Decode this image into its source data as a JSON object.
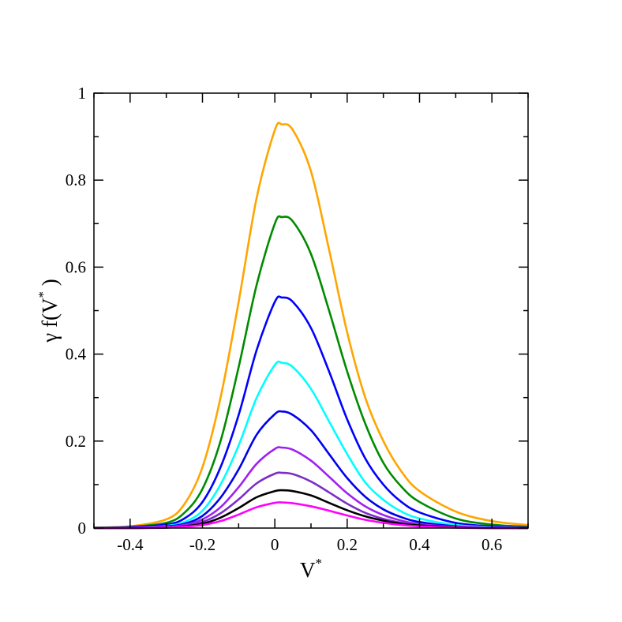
{
  "chart_data": {
    "type": "line",
    "title": "",
    "xlabel": "V",
    "xlabel_superscript": "*",
    "ylabel_greek": "γ",
    "ylabel_main": "f(V",
    "ylabel_close": ")",
    "ylabel_superscript": "*",
    "xlim": [
      -0.5,
      0.7
    ],
    "ylim": [
      0,
      1
    ],
    "xticks": [
      -0.4,
      -0.2,
      0,
      0.2,
      0.4,
      0.6
    ],
    "xtick_labels": [
      "-0.4",
      "-0.2",
      "0",
      "0.2",
      "0.4",
      "0.6"
    ],
    "yticks": [
      0,
      0.2,
      0.4,
      0.6,
      0.8,
      1
    ],
    "ytick_labels": [
      "0",
      "0.2",
      "0.4",
      "0.6",
      "0.8",
      "1"
    ],
    "grid": false,
    "legend": "none",
    "series": [
      {
        "color": "#ffa500",
        "values": [
          [
            -0.5,
            0.001
          ],
          [
            -0.4,
            0.004
          ],
          [
            -0.3,
            0.02
          ],
          [
            -0.25,
            0.055
          ],
          [
            -0.2,
            0.14
          ],
          [
            -0.15,
            0.3
          ],
          [
            -0.1,
            0.52
          ],
          [
            -0.05,
            0.76
          ],
          [
            0,
            0.915
          ],
          [
            0.02,
            0.928
          ],
          [
            0.05,
            0.915
          ],
          [
            0.1,
            0.82
          ],
          [
            0.15,
            0.64
          ],
          [
            0.2,
            0.45
          ],
          [
            0.25,
            0.3
          ],
          [
            0.3,
            0.2
          ],
          [
            0.35,
            0.13
          ],
          [
            0.4,
            0.085
          ],
          [
            0.5,
            0.038
          ],
          [
            0.6,
            0.016
          ],
          [
            0.7,
            0.007
          ]
        ]
      },
      {
        "color": "#008b00",
        "values": [
          [
            -0.5,
            0.001
          ],
          [
            -0.4,
            0.003
          ],
          [
            -0.3,
            0.012
          ],
          [
            -0.25,
            0.035
          ],
          [
            -0.2,
            0.09
          ],
          [
            -0.15,
            0.2
          ],
          [
            -0.1,
            0.37
          ],
          [
            -0.05,
            0.56
          ],
          [
            0,
            0.7
          ],
          [
            0.02,
            0.715
          ],
          [
            0.05,
            0.705
          ],
          [
            0.1,
            0.63
          ],
          [
            0.15,
            0.5
          ],
          [
            0.2,
            0.36
          ],
          [
            0.25,
            0.24
          ],
          [
            0.3,
            0.15
          ],
          [
            0.35,
            0.095
          ],
          [
            0.4,
            0.06
          ],
          [
            0.5,
            0.022
          ],
          [
            0.6,
            0.008
          ],
          [
            0.7,
            0.003
          ]
        ]
      },
      {
        "color": "#0000ff",
        "values": [
          [
            -0.5,
            0.0
          ],
          [
            -0.4,
            0.002
          ],
          [
            -0.3,
            0.008
          ],
          [
            -0.25,
            0.022
          ],
          [
            -0.2,
            0.06
          ],
          [
            -0.15,
            0.14
          ],
          [
            -0.1,
            0.26
          ],
          [
            -0.05,
            0.41
          ],
          [
            0,
            0.52
          ],
          [
            0.02,
            0.53
          ],
          [
            0.05,
            0.52
          ],
          [
            0.1,
            0.46
          ],
          [
            0.15,
            0.36
          ],
          [
            0.2,
            0.25
          ],
          [
            0.25,
            0.16
          ],
          [
            0.3,
            0.1
          ],
          [
            0.35,
            0.06
          ],
          [
            0.4,
            0.036
          ],
          [
            0.5,
            0.012
          ],
          [
            0.6,
            0.004
          ],
          [
            0.7,
            0.001
          ]
        ]
      },
      {
        "color": "#00ffff",
        "values": [
          [
            -0.5,
            0.0
          ],
          [
            -0.4,
            0.001
          ],
          [
            -0.3,
            0.005
          ],
          [
            -0.25,
            0.014
          ],
          [
            -0.2,
            0.04
          ],
          [
            -0.15,
            0.1
          ],
          [
            -0.1,
            0.19
          ],
          [
            -0.05,
            0.3
          ],
          [
            0,
            0.375
          ],
          [
            0.02,
            0.38
          ],
          [
            0.05,
            0.37
          ],
          [
            0.1,
            0.32
          ],
          [
            0.15,
            0.245
          ],
          [
            0.2,
            0.17
          ],
          [
            0.25,
            0.105
          ],
          [
            0.3,
            0.065
          ],
          [
            0.35,
            0.038
          ],
          [
            0.4,
            0.022
          ],
          [
            0.5,
            0.007
          ],
          [
            0.6,
            0.002
          ],
          [
            0.7,
            0.0
          ]
        ]
      },
      {
        "color": "#0000ee",
        "values": [
          [
            -0.5,
            0.0
          ],
          [
            -0.4,
            0.001
          ],
          [
            -0.3,
            0.004
          ],
          [
            -0.25,
            0.01
          ],
          [
            -0.2,
            0.028
          ],
          [
            -0.15,
            0.07
          ],
          [
            -0.1,
            0.135
          ],
          [
            -0.05,
            0.215
          ],
          [
            0,
            0.262
          ],
          [
            0.02,
            0.268
          ],
          [
            0.05,
            0.26
          ],
          [
            0.1,
            0.225
          ],
          [
            0.15,
            0.17
          ],
          [
            0.2,
            0.115
          ],
          [
            0.25,
            0.072
          ],
          [
            0.3,
            0.043
          ],
          [
            0.35,
            0.025
          ],
          [
            0.4,
            0.014
          ],
          [
            0.5,
            0.004
          ],
          [
            0.6,
            0.001
          ],
          [
            0.7,
            0.0
          ]
        ]
      },
      {
        "color": "#a020f0",
        "values": [
          [
            -0.5,
            0.0
          ],
          [
            -0.4,
            0.001
          ],
          [
            -0.3,
            0.003
          ],
          [
            -0.25,
            0.007
          ],
          [
            -0.2,
            0.02
          ],
          [
            -0.15,
            0.048
          ],
          [
            -0.1,
            0.094
          ],
          [
            -0.05,
            0.148
          ],
          [
            0,
            0.182
          ],
          [
            0.02,
            0.185
          ],
          [
            0.05,
            0.18
          ],
          [
            0.1,
            0.155
          ],
          [
            0.15,
            0.118
          ],
          [
            0.2,
            0.08
          ],
          [
            0.25,
            0.05
          ],
          [
            0.3,
            0.03
          ],
          [
            0.35,
            0.017
          ],
          [
            0.4,
            0.009
          ],
          [
            0.5,
            0.003
          ],
          [
            0.6,
            0.001
          ],
          [
            0.7,
            0.0
          ]
        ]
      },
      {
        "color": "#7b2ec6",
        "values": [
          [
            -0.5,
            0.0
          ],
          [
            -0.4,
            0.0
          ],
          [
            -0.3,
            0.002
          ],
          [
            -0.25,
            0.005
          ],
          [
            -0.2,
            0.014
          ],
          [
            -0.15,
            0.034
          ],
          [
            -0.1,
            0.066
          ],
          [
            -0.05,
            0.103
          ],
          [
            0,
            0.125
          ],
          [
            0.02,
            0.127
          ],
          [
            0.05,
            0.124
          ],
          [
            0.1,
            0.107
          ],
          [
            0.15,
            0.082
          ],
          [
            0.2,
            0.056
          ],
          [
            0.25,
            0.035
          ],
          [
            0.3,
            0.021
          ],
          [
            0.35,
            0.012
          ],
          [
            0.4,
            0.006
          ],
          [
            0.5,
            0.002
          ],
          [
            0.6,
            0.0
          ],
          [
            0.7,
            0.0
          ]
        ]
      },
      {
        "color": "#000000",
        "values": [
          [
            -0.5,
            0.0
          ],
          [
            -0.4,
            0.0
          ],
          [
            -0.3,
            0.001
          ],
          [
            -0.25,
            0.004
          ],
          [
            -0.2,
            0.01
          ],
          [
            -0.15,
            0.024
          ],
          [
            -0.1,
            0.046
          ],
          [
            -0.05,
            0.071
          ],
          [
            0,
            0.085
          ],
          [
            0.02,
            0.087
          ],
          [
            0.05,
            0.085
          ],
          [
            0.1,
            0.075
          ],
          [
            0.15,
            0.058
          ],
          [
            0.2,
            0.041
          ],
          [
            0.25,
            0.027
          ],
          [
            0.3,
            0.017
          ],
          [
            0.35,
            0.01
          ],
          [
            0.4,
            0.006
          ],
          [
            0.5,
            0.002
          ],
          [
            0.6,
            0.0
          ],
          [
            0.7,
            0.0
          ]
        ]
      },
      {
        "color": "#ff00ff",
        "values": [
          [
            -0.5,
            0.0
          ],
          [
            -0.4,
            0.0
          ],
          [
            -0.3,
            0.001
          ],
          [
            -0.25,
            0.003
          ],
          [
            -0.2,
            0.007
          ],
          [
            -0.15,
            0.016
          ],
          [
            -0.1,
            0.031
          ],
          [
            -0.05,
            0.048
          ],
          [
            0,
            0.058
          ],
          [
            0.02,
            0.059
          ],
          [
            0.05,
            0.057
          ],
          [
            0.1,
            0.05
          ],
          [
            0.15,
            0.04
          ],
          [
            0.2,
            0.029
          ],
          [
            0.25,
            0.019
          ],
          [
            0.3,
            0.012
          ],
          [
            0.35,
            0.007
          ],
          [
            0.4,
            0.004
          ],
          [
            0.5,
            0.001
          ],
          [
            0.6,
            0.0
          ],
          [
            0.7,
            0.0
          ]
        ]
      }
    ]
  }
}
